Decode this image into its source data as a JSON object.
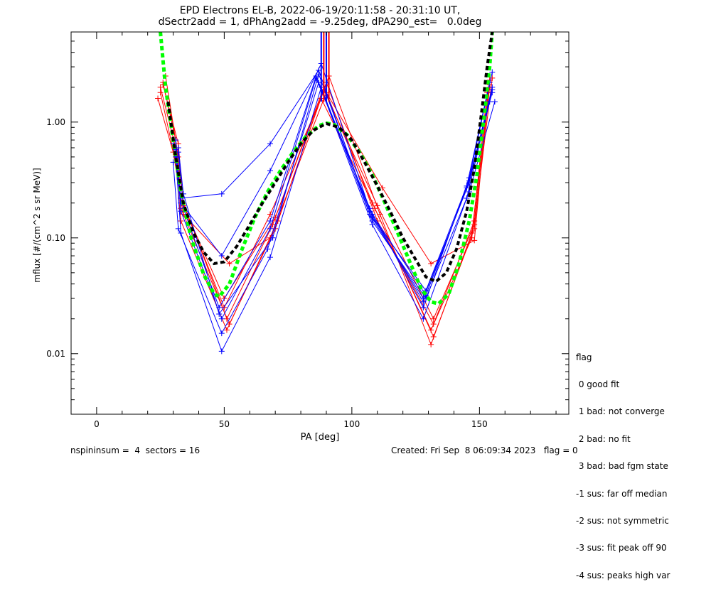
{
  "title_line1": "EPD Electrons EL-B, 2022-06-19/20:11:58 - 20:31:10 UT,",
  "title_line2": "dSectr2add = 1, dPhAng2add = -9.25deg, dPA290_est=   0.0deg",
  "footer": {
    "left": "nspininsum =  4  sectors = 16",
    "right": "Created: Fri Sep  8 06:09:34 2023   flag = 0"
  },
  "flag_legend": {
    "title": "flag",
    "entries": [
      " 0 good fit",
      " 1 bad: not converge",
      " 2 bad: no fit",
      " 3 bad: bad fgm state",
      "-1 sus: far off median",
      "-2 sus: not symmetric",
      "-3 sus: fit peak off 90",
      "-4 sus: peaks high var"
    ]
  },
  "colors": {
    "red": "#ff0000",
    "blue": "#0000ff",
    "black": "#000000",
    "green": "#00ff00"
  },
  "chart_data": {
    "type": "line",
    "xlabel": "PA [deg]",
    "ylabel": "mflux [#/(cm^2 s sr MeV)]",
    "xlim": [
      -10,
      185
    ],
    "ylim": [
      0.003,
      6.0
    ],
    "yscale": "log",
    "xticks": [
      0,
      50,
      100,
      150
    ],
    "xtick_labels": [
      "0",
      "50",
      "100",
      "150"
    ],
    "yticks": [
      0.01,
      0.1,
      1.0
    ],
    "ytick_labels": [
      "0.01",
      "0.10",
      "1.00"
    ],
    "grid": false,
    "red_series": [
      [
        [
          25,
          2.0
        ],
        [
          31,
          0.6
        ],
        [
          33,
          0.22
        ],
        [
          50,
          0.025
        ],
        [
          68,
          0.16
        ],
        [
          88,
          1.6
        ],
        [
          108,
          0.2
        ],
        [
          131,
          0.016
        ],
        [
          147,
          0.1
        ],
        [
          153,
          1.8
        ]
      ],
      [
        [
          26,
          2.2
        ],
        [
          31,
          0.7
        ],
        [
          34,
          0.2
        ],
        [
          51,
          0.02
        ],
        [
          69,
          0.13
        ],
        [
          89,
          2.0
        ],
        [
          109,
          0.18
        ],
        [
          132,
          0.014
        ],
        [
          148,
          0.12
        ],
        [
          154,
          2.0
        ]
      ],
      [
        [
          27,
          2.5
        ],
        [
          32,
          0.5
        ],
        [
          33,
          0.18
        ],
        [
          52,
          0.018
        ],
        [
          70,
          0.12
        ],
        [
          90,
          2.2
        ],
        [
          110,
          0.14
        ],
        [
          132,
          0.018
        ],
        [
          148,
          0.14
        ],
        [
          154,
          2.3
        ]
      ],
      [
        [
          24,
          1.6
        ],
        [
          30,
          0.55
        ],
        [
          34,
          0.16
        ],
        [
          52,
          0.06
        ],
        [
          68,
          0.1
        ],
        [
          90,
          1.8
        ],
        [
          112,
          0.27
        ],
        [
          131,
          0.06
        ],
        [
          148,
          0.095
        ],
        [
          153,
          1.5
        ]
      ],
      [
        [
          25,
          1.8
        ],
        [
          31,
          0.45
        ],
        [
          33,
          0.14
        ],
        [
          51,
          0.016
        ],
        [
          71,
          0.14
        ],
        [
          91,
          2.5
        ],
        [
          111,
          0.16
        ],
        [
          131,
          0.012
        ],
        [
          147,
          0.11
        ],
        [
          154,
          2.1
        ]
      ],
      [
        [
          26,
          2.1
        ],
        [
          32,
          0.65
        ],
        [
          34,
          0.19
        ],
        [
          50,
          0.03
        ],
        [
          70,
          0.15
        ],
        [
          89,
          1.9
        ],
        [
          110,
          0.19
        ],
        [
          132,
          0.02
        ],
        [
          148,
          0.13
        ],
        [
          155,
          2.4
        ]
      ]
    ],
    "blue_series": [
      [
        [
          30,
          0.65
        ],
        [
          33,
          0.22
        ],
        [
          49,
          0.24
        ],
        [
          68,
          0.65
        ],
        [
          87,
          2.8
        ],
        [
          107,
          0.16
        ],
        [
          128,
          0.03
        ],
        [
          146,
          0.3
        ],
        [
          155,
          1.9
        ]
      ],
      [
        [
          31,
          0.7
        ],
        [
          33,
          0.2
        ],
        [
          49,
          0.07
        ],
        [
          68,
          0.38
        ],
        [
          88,
          3.2
        ],
        [
          108,
          0.15
        ],
        [
          129,
          0.035
        ],
        [
          145,
          0.28
        ],
        [
          154,
          2.2
        ]
      ],
      [
        [
          32,
          0.55
        ],
        [
          34,
          0.18
        ],
        [
          48,
          0.025
        ],
        [
          68,
          0.14
        ],
        [
          86,
          2.5
        ],
        [
          107,
          0.18
        ],
        [
          128,
          0.025
        ],
        [
          146,
          0.33
        ],
        [
          155,
          2.7
        ]
      ],
      [
        [
          30,
          0.45
        ],
        [
          32,
          0.12
        ],
        [
          49,
          0.015
        ],
        [
          67,
          0.08
        ],
        [
          87,
          2.2
        ],
        [
          108,
          0.13
        ],
        [
          128,
          0.02
        ],
        [
          145,
          0.22
        ],
        [
          154,
          1.5
        ]
      ],
      [
        [
          31,
          0.5
        ],
        [
          33,
          0.11
        ],
        [
          49,
          0.0105
        ],
        [
          68,
          0.068
        ],
        [
          88,
          2.0
        ],
        [
          108,
          0.14
        ],
        [
          129,
          0.03
        ],
        [
          146,
          0.25
        ],
        [
          156,
          1.5
        ]
      ],
      [
        [
          32,
          0.6
        ],
        [
          34,
          0.24
        ],
        [
          48,
          0.022
        ],
        [
          69,
          0.1
        ],
        [
          87,
          2.6
        ],
        [
          107,
          0.17
        ],
        [
          128,
          0.028
        ],
        [
          146,
          0.31
        ],
        [
          155,
          2.0
        ]
      ],
      [
        [
          31,
          0.58
        ],
        [
          33,
          0.17
        ],
        [
          49,
          0.02
        ],
        [
          68,
          0.12
        ],
        [
          86,
          2.4
        ],
        [
          108,
          0.16
        ],
        [
          129,
          0.032
        ],
        [
          145,
          0.27
        ],
        [
          155,
          1.8
        ]
      ]
    ],
    "black_dashed": [
      [
        28,
        1.5
      ],
      [
        31,
        0.5
      ],
      [
        34,
        0.2
      ],
      [
        38,
        0.11
      ],
      [
        42,
        0.075
      ],
      [
        46,
        0.06
      ],
      [
        50,
        0.062
      ],
      [
        55,
        0.085
      ],
      [
        60,
        0.13
      ],
      [
        65,
        0.2
      ],
      [
        70,
        0.3
      ],
      [
        75,
        0.45
      ],
      [
        80,
        0.65
      ],
      [
        85,
        0.85
      ],
      [
        90,
        0.97
      ],
      [
        95,
        0.9
      ],
      [
        100,
        0.7
      ],
      [
        105,
        0.45
      ],
      [
        110,
        0.28
      ],
      [
        115,
        0.17
      ],
      [
        120,
        0.1
      ],
      [
        125,
        0.065
      ],
      [
        129,
        0.046
      ],
      [
        133,
        0.042
      ],
      [
        137,
        0.05
      ],
      [
        141,
        0.08
      ],
      [
        145,
        0.17
      ],
      [
        148,
        0.4
      ],
      [
        151,
        1.3
      ],
      [
        153,
        3.0
      ],
      [
        155,
        6.0
      ]
    ],
    "green_dashed": [
      [
        25,
        6.0
      ],
      [
        27,
        2.0
      ],
      [
        30,
        0.7
      ],
      [
        33,
        0.25
      ],
      [
        37,
        0.1
      ],
      [
        42,
        0.048
      ],
      [
        46,
        0.033
      ],
      [
        48,
        0.031
      ],
      [
        52,
        0.04
      ],
      [
        57,
        0.08
      ],
      [
        62,
        0.15
      ],
      [
        67,
        0.25
      ],
      [
        72,
        0.38
      ],
      [
        77,
        0.55
      ],
      [
        82,
        0.75
      ],
      [
        87,
        0.93
      ],
      [
        90,
        0.98
      ],
      [
        93,
        0.95
      ],
      [
        98,
        0.78
      ],
      [
        103,
        0.55
      ],
      [
        108,
        0.35
      ],
      [
        113,
        0.2
      ],
      [
        118,
        0.11
      ],
      [
        123,
        0.06
      ],
      [
        127,
        0.037
      ],
      [
        131,
        0.028
      ],
      [
        134,
        0.027
      ],
      [
        138,
        0.033
      ],
      [
        142,
        0.06
      ],
      [
        146,
        0.14
      ],
      [
        149,
        0.35
      ],
      [
        152,
        1.2
      ],
      [
        154,
        3.0
      ],
      [
        155,
        6.0
      ]
    ],
    "spike": {
      "x": [
        88,
        89,
        90,
        91
      ],
      "ymin": 1.5,
      "ymax": 6.0
    }
  }
}
